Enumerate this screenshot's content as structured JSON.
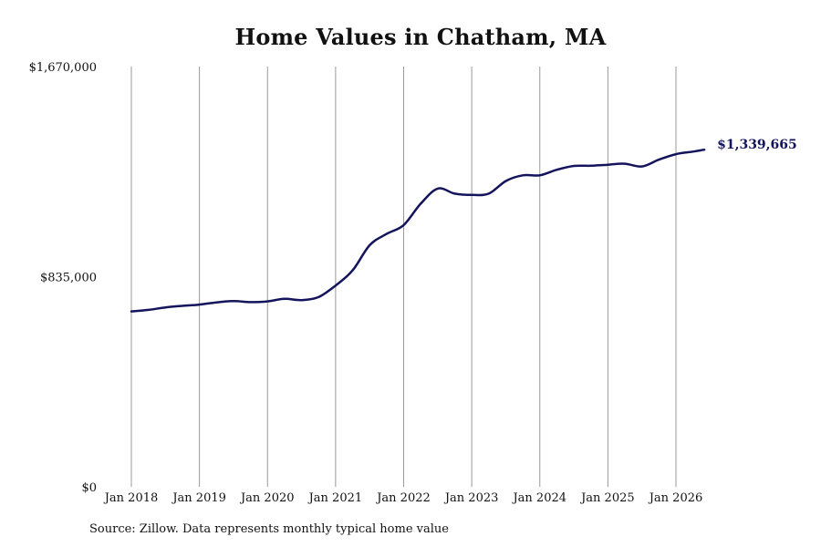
{
  "chart_data": {
    "type": "line",
    "title": "Home Values in Chatham, MA",
    "source": "Source: Zillow. Data represents monthly typical home value",
    "xlabel": "",
    "ylabel": "",
    "ylim": [
      0,
      1670000
    ],
    "y_ticks": [
      {
        "value": 0,
        "label": "$0"
      },
      {
        "value": 835000,
        "label": "$835,000"
      },
      {
        "value": 1670000,
        "label": "$1,670,000"
      }
    ],
    "x_ticks": [
      {
        "value": 2018,
        "label": "Jan 2018"
      },
      {
        "value": 2019,
        "label": "Jan 2019"
      },
      {
        "value": 2020,
        "label": "Jan 2020"
      },
      {
        "value": 2021,
        "label": "Jan 2021"
      },
      {
        "value": 2022,
        "label": "Jan 2022"
      },
      {
        "value": 2023,
        "label": "Jan 2023"
      },
      {
        "value": 2024,
        "label": "Jan 2024"
      },
      {
        "value": 2025,
        "label": "Jan 2025"
      },
      {
        "value": 2026,
        "label": "Jan 2026"
      }
    ],
    "grid": {
      "vertical": true,
      "horizontal": false
    },
    "line_color": "#14145c",
    "grid_color": "#9a9a9a",
    "series": [
      {
        "end_label": "$1,339,665",
        "points": [
          {
            "x": "2018-01",
            "y": 697000
          },
          {
            "x": "2018-04",
            "y": 703000
          },
          {
            "x": "2018-07",
            "y": 713000
          },
          {
            "x": "2018-10",
            "y": 719000
          },
          {
            "x": "2019-01",
            "y": 724000
          },
          {
            "x": "2019-04",
            "y": 733000
          },
          {
            "x": "2019-07",
            "y": 738000
          },
          {
            "x": "2019-10",
            "y": 734000
          },
          {
            "x": "2020-01",
            "y": 737000
          },
          {
            "x": "2020-04",
            "y": 747000
          },
          {
            "x": "2020-07",
            "y": 742000
          },
          {
            "x": "2020-10",
            "y": 754000
          },
          {
            "x": "2021-01",
            "y": 800000
          },
          {
            "x": "2021-04",
            "y": 860000
          },
          {
            "x": "2021-07",
            "y": 960000
          },
          {
            "x": "2021-10",
            "y": 1005000
          },
          {
            "x": "2022-01",
            "y": 1040000
          },
          {
            "x": "2022-04",
            "y": 1125000
          },
          {
            "x": "2022-07",
            "y": 1185000
          },
          {
            "x": "2022-10",
            "y": 1165000
          },
          {
            "x": "2023-01",
            "y": 1160000
          },
          {
            "x": "2023-04",
            "y": 1165000
          },
          {
            "x": "2023-07",
            "y": 1215000
          },
          {
            "x": "2023-10",
            "y": 1238000
          },
          {
            "x": "2024-01",
            "y": 1238000
          },
          {
            "x": "2024-04",
            "y": 1260000
          },
          {
            "x": "2024-07",
            "y": 1275000
          },
          {
            "x": "2024-10",
            "y": 1276000
          },
          {
            "x": "2025-01",
            "y": 1280000
          },
          {
            "x": "2025-04",
            "y": 1284000
          },
          {
            "x": "2025-07",
            "y": 1273000
          },
          {
            "x": "2025-10",
            "y": 1300000
          },
          {
            "x": "2026-01",
            "y": 1322000
          },
          {
            "x": "2026-04",
            "y": 1332000
          },
          {
            "x": "2026-06",
            "y": 1339665
          }
        ]
      }
    ]
  }
}
